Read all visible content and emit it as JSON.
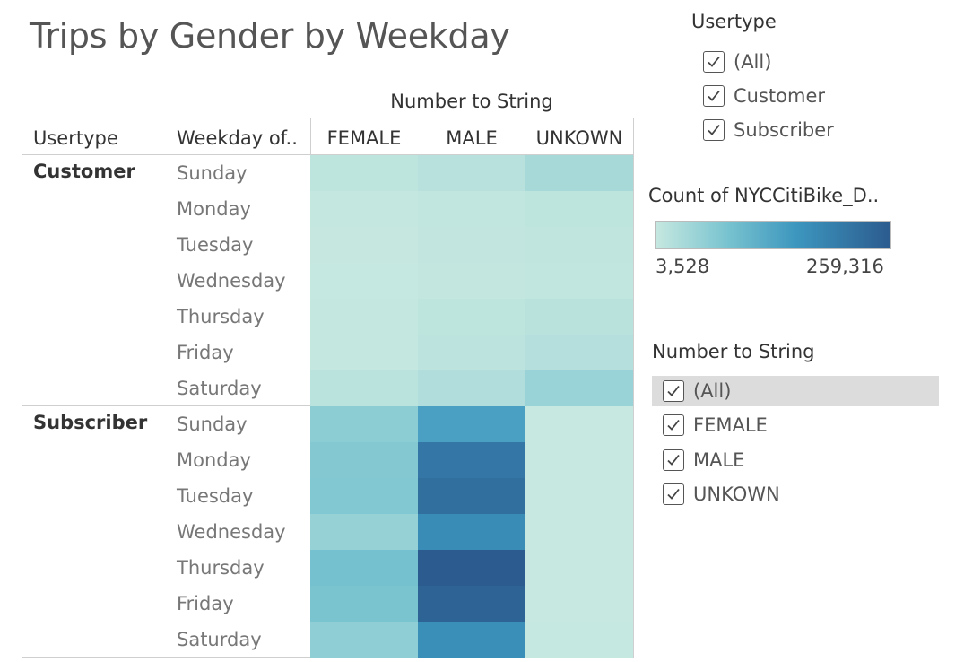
{
  "title": "Trips by Gender by Weekday",
  "colors": {
    "low": "#c6e8e0",
    "high": "#2c5b8f"
  },
  "table": {
    "column_group_header": "Number to String",
    "row_headers": [
      "Usertype",
      "Weekday of.."
    ],
    "columns": [
      "FEMALE",
      "MALE",
      "UNKOWN"
    ]
  },
  "chart_data": {
    "type": "heatmap",
    "title": "Trips by Gender by Weekday",
    "measure": "Count of NYCCitiBike_D..",
    "color_range": [
      3528,
      259316
    ],
    "columns": [
      "FEMALE",
      "MALE",
      "UNKOWN"
    ],
    "groups": [
      {
        "name": "Customer",
        "rows": [
          "Sunday",
          "Monday",
          "Tuesday",
          "Wednesday",
          "Thursday",
          "Friday",
          "Saturday"
        ],
        "values": [
          [
            12000,
            18000,
            35000
          ],
          [
            6000,
            9000,
            12000
          ],
          [
            5000,
            8000,
            10000
          ],
          [
            4500,
            7000,
            9000
          ],
          [
            5500,
            12000,
            16000
          ],
          [
            6000,
            14000,
            22000
          ],
          [
            15000,
            25000,
            48000
          ]
        ]
      },
      {
        "name": "Subscriber",
        "rows": [
          "Sunday",
          "Monday",
          "Tuesday",
          "Wednesday",
          "Thursday",
          "Friday",
          "Saturday"
        ],
        "values": [
          [
            62000,
            140000,
            4000
          ],
          [
            70000,
            210000,
            3600
          ],
          [
            72000,
            225000,
            3528
          ],
          [
            52000,
            175000,
            3700
          ],
          [
            85000,
            259316,
            3800
          ],
          [
            80000,
            245000,
            3900
          ],
          [
            60000,
            170000,
            4100
          ]
        ]
      }
    ]
  },
  "filters": {
    "usertype": {
      "title": "Usertype",
      "options": [
        "(All)",
        "Customer",
        "Subscriber"
      ]
    },
    "number_to_string": {
      "title": "Number to String",
      "options": [
        "(All)",
        "FEMALE",
        "MALE",
        "UNKOWN"
      ]
    }
  },
  "legend": {
    "title": "Count of NYCCitiBike_D..",
    "min_label": "3,528",
    "max_label": "259,316"
  }
}
